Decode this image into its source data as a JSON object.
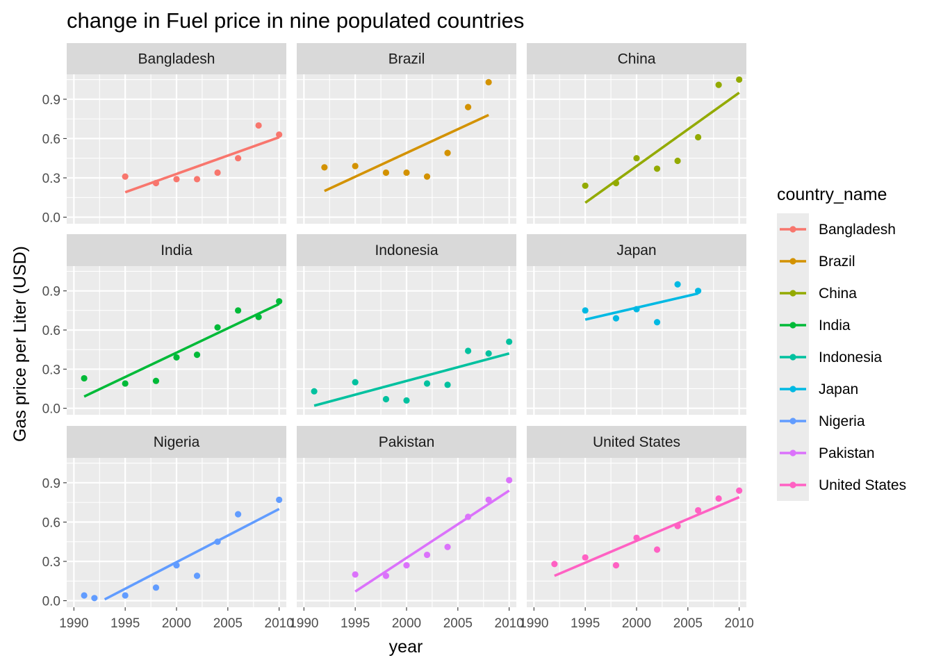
{
  "chart_data": {
    "type": "scatter",
    "title": "change in Fuel price in nine populated countries",
    "xlabel": "year",
    "ylabel": "Gas price per Liter (USD)",
    "legend_title": "country_name",
    "legend_position": "right",
    "grid": true,
    "xlim": [
      1989.3,
      2010.7
    ],
    "ylim": [
      -0.05,
      1.09
    ],
    "x_ticks": [
      1990,
      1995,
      2000,
      2005,
      2010
    ],
    "y_ticks": [
      0.0,
      0.3,
      0.6,
      0.9
    ],
    "y_tick_labels": [
      "0.0",
      "0.3",
      "0.6",
      "0.9"
    ],
    "facets": [
      {
        "name": "Bangladesh",
        "color": "#F8766D",
        "points": [
          [
            1995,
            0.31
          ],
          [
            1998,
            0.26
          ],
          [
            2000,
            0.29
          ],
          [
            2002,
            0.29
          ],
          [
            2004,
            0.34
          ],
          [
            2006,
            0.45
          ],
          [
            2008,
            0.7
          ],
          [
            2010,
            0.63
          ]
        ],
        "trend": [
          [
            1995,
            0.19
          ],
          [
            2010,
            0.61
          ]
        ]
      },
      {
        "name": "Brazil",
        "color": "#D39200",
        "points": [
          [
            1992,
            0.38
          ],
          [
            1995,
            0.39
          ],
          [
            1998,
            0.34
          ],
          [
            2000,
            0.34
          ],
          [
            2002,
            0.31
          ],
          [
            2004,
            0.49
          ],
          [
            2006,
            0.84
          ],
          [
            2008,
            1.03
          ]
        ],
        "trend": [
          [
            1992,
            0.2
          ],
          [
            2008,
            0.78
          ]
        ]
      },
      {
        "name": "China",
        "color": "#93AA00",
        "points": [
          [
            1995,
            0.24
          ],
          [
            1998,
            0.26
          ],
          [
            2000,
            0.45
          ],
          [
            2002,
            0.37
          ],
          [
            2004,
            0.43
          ],
          [
            2006,
            0.61
          ],
          [
            2008,
            1.01
          ],
          [
            2010,
            1.05
          ]
        ],
        "trend": [
          [
            1995,
            0.11
          ],
          [
            2010,
            0.95
          ]
        ]
      },
      {
        "name": "India",
        "color": "#00BA38",
        "points": [
          [
            1991,
            0.23
          ],
          [
            1995,
            0.19
          ],
          [
            1998,
            0.21
          ],
          [
            2000,
            0.39
          ],
          [
            2002,
            0.41
          ],
          [
            2004,
            0.62
          ],
          [
            2006,
            0.75
          ],
          [
            2008,
            0.7
          ],
          [
            2010,
            0.82
          ]
        ],
        "trend": [
          [
            1991,
            0.09
          ],
          [
            2010,
            0.8
          ]
        ]
      },
      {
        "name": "Indonesia",
        "color": "#00C19F",
        "points": [
          [
            1991,
            0.13
          ],
          [
            1995,
            0.2
          ],
          [
            1998,
            0.07
          ],
          [
            2000,
            0.06
          ],
          [
            2002,
            0.19
          ],
          [
            2004,
            0.18
          ],
          [
            2006,
            0.44
          ],
          [
            2008,
            0.42
          ],
          [
            2010,
            0.51
          ]
        ],
        "trend": [
          [
            1991,
            0.02
          ],
          [
            2010,
            0.42
          ]
        ]
      },
      {
        "name": "Japan",
        "color": "#00B9E3",
        "points": [
          [
            1995,
            0.75
          ],
          [
            1998,
            0.69
          ],
          [
            2000,
            0.76
          ],
          [
            2002,
            0.66
          ],
          [
            2004,
            0.95
          ],
          [
            2006,
            0.9
          ]
        ],
        "trend": [
          [
            1995,
            0.68
          ],
          [
            2006,
            0.88
          ]
        ]
      },
      {
        "name": "Nigeria",
        "color": "#619CFF",
        "points": [
          [
            1991,
            0.04
          ],
          [
            1992,
            0.02
          ],
          [
            1995,
            0.04
          ],
          [
            1998,
            0.1
          ],
          [
            2000,
            0.27
          ],
          [
            2002,
            0.19
          ],
          [
            2004,
            0.45
          ],
          [
            2006,
            0.66
          ],
          [
            2010,
            0.77
          ]
        ],
        "trend": [
          [
            1993,
            0.01
          ],
          [
            2010,
            0.7
          ]
        ]
      },
      {
        "name": "Pakistan",
        "color": "#DB72FB",
        "points": [
          [
            1995,
            0.2
          ],
          [
            1998,
            0.19
          ],
          [
            2000,
            0.27
          ],
          [
            2002,
            0.35
          ],
          [
            2004,
            0.41
          ],
          [
            2006,
            0.64
          ],
          [
            2008,
            0.77
          ],
          [
            2010,
            0.92
          ]
        ],
        "trend": [
          [
            1995,
            0.07
          ],
          [
            2010,
            0.84
          ]
        ]
      },
      {
        "name": "United States",
        "color": "#FF61C3",
        "points": [
          [
            1992,
            0.28
          ],
          [
            1995,
            0.33
          ],
          [
            1998,
            0.27
          ],
          [
            2000,
            0.48
          ],
          [
            2002,
            0.39
          ],
          [
            2004,
            0.57
          ],
          [
            2006,
            0.69
          ],
          [
            2008,
            0.78
          ],
          [
            2010,
            0.84
          ]
        ],
        "trend": [
          [
            1992,
            0.19
          ],
          [
            2010,
            0.79
          ]
        ]
      }
    ]
  }
}
